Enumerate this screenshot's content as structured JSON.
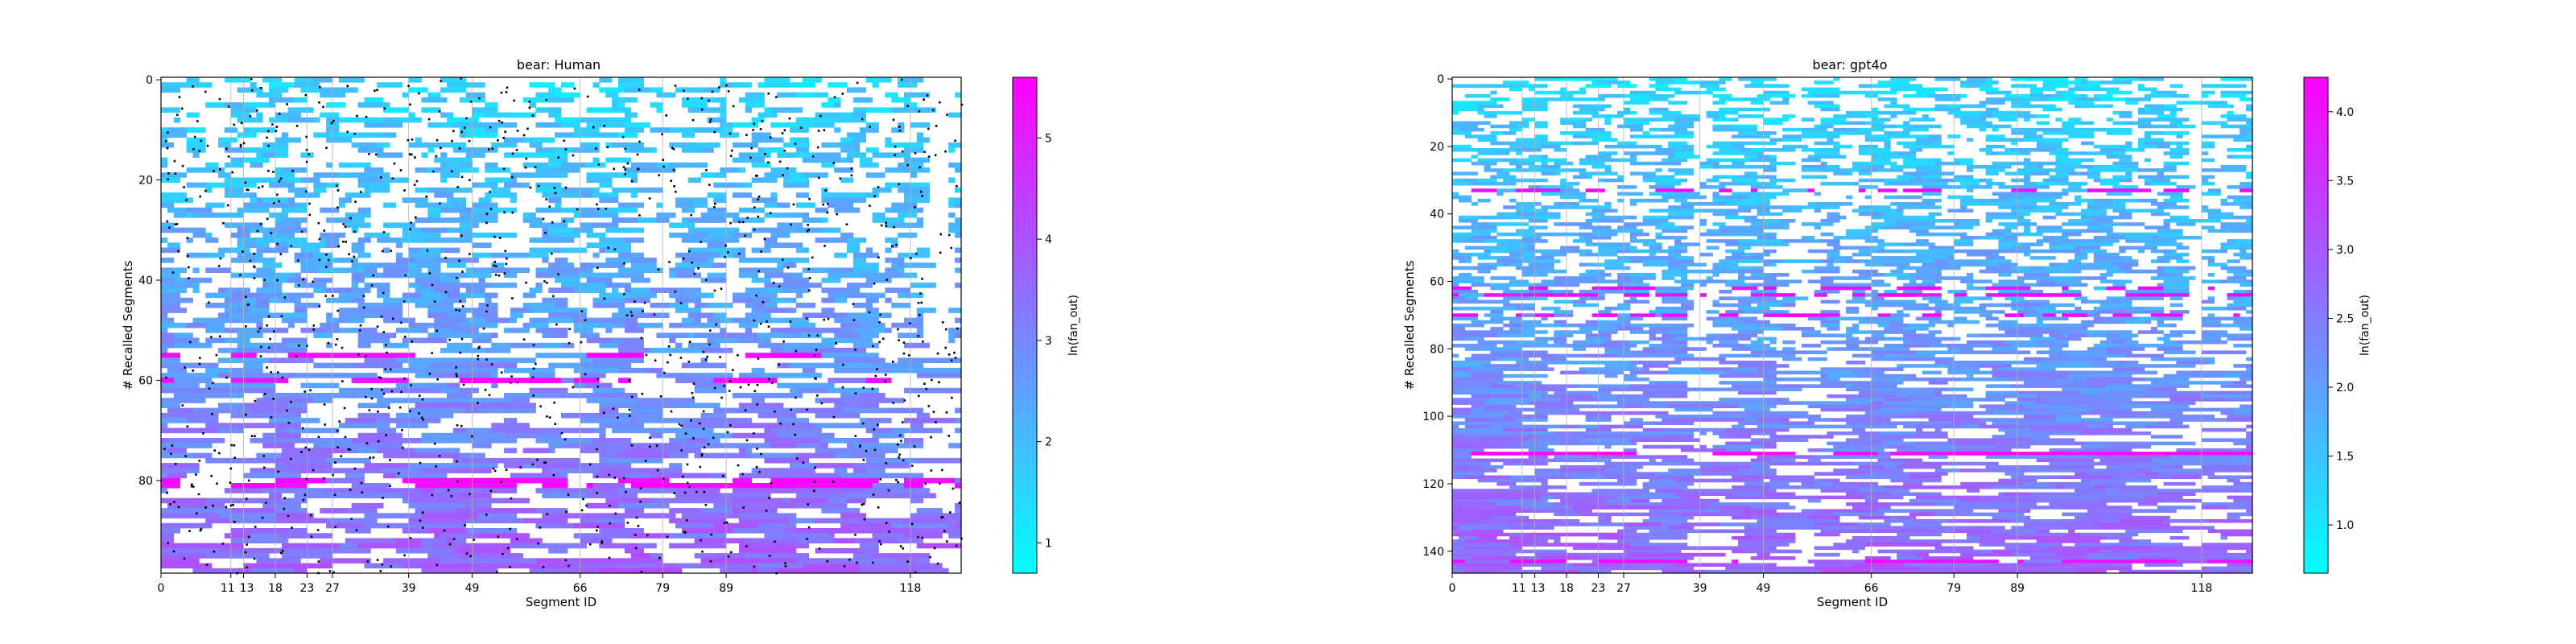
{
  "chart_data": [
    {
      "type": "heatmap",
      "title": "bear: Human",
      "xlabel": "Segment ID",
      "ylabel": "# Recalled Segments",
      "xticks": [
        0,
        11,
        13,
        18,
        23,
        27,
        39,
        49,
        66,
        79,
        89,
        118
      ],
      "xtick_labels": [
        "0",
        "11",
        "13",
        "18",
        "23",
        "27",
        "39",
        "49",
        "66",
        "79",
        "89",
        "118"
      ],
      "x_range": [
        0,
        126
      ],
      "yticks": [
        0,
        20,
        40,
        60,
        80
      ],
      "yticks_labels": [
        "0",
        "20",
        "40",
        "60",
        "80"
      ],
      "y_range": [
        0,
        99
      ],
      "n_rows": 99,
      "grid_columns": [
        0,
        11,
        13,
        18,
        23,
        27,
        39,
        49,
        66,
        79,
        89,
        118
      ],
      "colorbar": {
        "label": "ln(fan_out)",
        "min": 0.7,
        "max": 5.6,
        "ticks": [
          1,
          2,
          3,
          4,
          5
        ],
        "tick_labels": [
          "1",
          "2",
          "3",
          "4",
          "5"
        ],
        "colormap": [
          "#00ffff",
          "#ff00ff"
        ]
      },
      "has_markers": true,
      "seed": 11,
      "density_top": 0.45,
      "density_bottom": 0.88
    },
    {
      "type": "heatmap",
      "title": "bear: gpt4o",
      "xlabel": "Segment ID",
      "ylabel": "# Recalled Segments",
      "xticks": [
        0,
        11,
        13,
        18,
        23,
        27,
        39,
        49,
        66,
        79,
        89,
        118
      ],
      "xtick_labels": [
        "0",
        "11",
        "13",
        "18",
        "23",
        "27",
        "39",
        "49",
        "66",
        "79",
        "89",
        "118"
      ],
      "x_range": [
        0,
        126
      ],
      "yticks": [
        0,
        20,
        40,
        60,
        80,
        100,
        120,
        140
      ],
      "yticks_labels": [
        "0",
        "20",
        "40",
        "60",
        "80",
        "100",
        "120",
        "140"
      ],
      "y_range": [
        0,
        147
      ],
      "n_rows": 147,
      "grid_columns": [
        0,
        11,
        13,
        18,
        23,
        27,
        39,
        49,
        66,
        79,
        89,
        118
      ],
      "colorbar": {
        "label": "ln(fan_out)",
        "min": 0.65,
        "max": 4.25,
        "ticks": [
          1.0,
          1.5,
          2.0,
          2.5,
          3.0,
          3.5,
          4.0
        ],
        "tick_labels": [
          "1.0",
          "1.5",
          "2.0",
          "2.5",
          "3.0",
          "3.5",
          "4.0"
        ],
        "colormap": [
          "#00ffff",
          "#ff00ff"
        ]
      },
      "has_markers": false,
      "seed": 29,
      "density_top": 0.55,
      "density_bottom": 0.9
    }
  ]
}
